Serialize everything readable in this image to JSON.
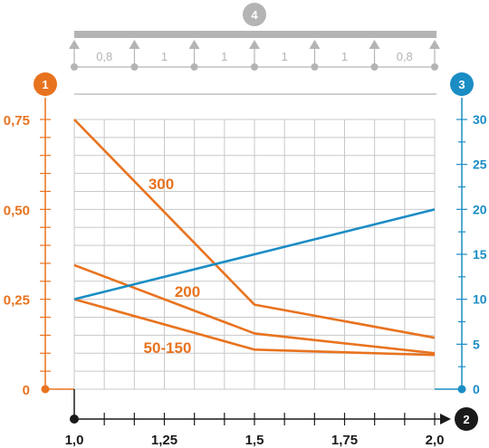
{
  "chart_data": {
    "type": "line",
    "title": "",
    "x": [
      1.0,
      1.5,
      2.0
    ],
    "xlim": [
      1.0,
      2.0
    ],
    "ylim_left": [
      0,
      0.75
    ],
    "ylim_right": [
      0,
      30
    ],
    "grid": true,
    "x_ticks": [
      "1,0",
      "1,25",
      "1,5",
      "1,75",
      "2,0"
    ],
    "x_tick_values": [
      1.0,
      1.25,
      1.5,
      1.75,
      2.0
    ],
    "left_ticks": [
      "0",
      "0,25",
      "0,50",
      "0,75"
    ],
    "left_tick_values": [
      0,
      0.25,
      0.5,
      0.75
    ],
    "right_ticks": [
      "0",
      "5",
      "10",
      "15",
      "20",
      "25",
      "30"
    ],
    "right_tick_values": [
      0,
      5,
      10,
      15,
      20,
      25,
      30
    ],
    "series": [
      {
        "name": "300",
        "axis": "left",
        "color": "#e8731f",
        "values": [
          0.75,
          0.235,
          0.143
        ]
      },
      {
        "name": "200",
        "axis": "left",
        "color": "#e8731f",
        "values": [
          0.345,
          0.155,
          0.1
        ]
      },
      {
        "name": "50-150",
        "axis": "left",
        "color": "#e8731f",
        "values": [
          0.25,
          0.11,
          0.095
        ]
      },
      {
        "name": "",
        "axis": "right",
        "color": "#1a8dc4",
        "values": [
          10,
          15,
          20
        ]
      }
    ],
    "badges": {
      "left_axis": "1",
      "x_axis": "2",
      "right_axis": "3",
      "support_bar": "4"
    },
    "support_bar": {
      "supports": [
        1.0,
        1.167,
        1.333,
        1.5,
        1.667,
        1.833,
        2.0
      ],
      "span_labels": [
        "0,8",
        "1",
        "1",
        "1",
        "1",
        "0,8"
      ]
    }
  },
  "colors": {
    "orange": "#e8731f",
    "blue": "#1a8dc4",
    "gray": "#b4b4b4",
    "grid": "#c8c8c8",
    "black": "#1a1a1a"
  }
}
